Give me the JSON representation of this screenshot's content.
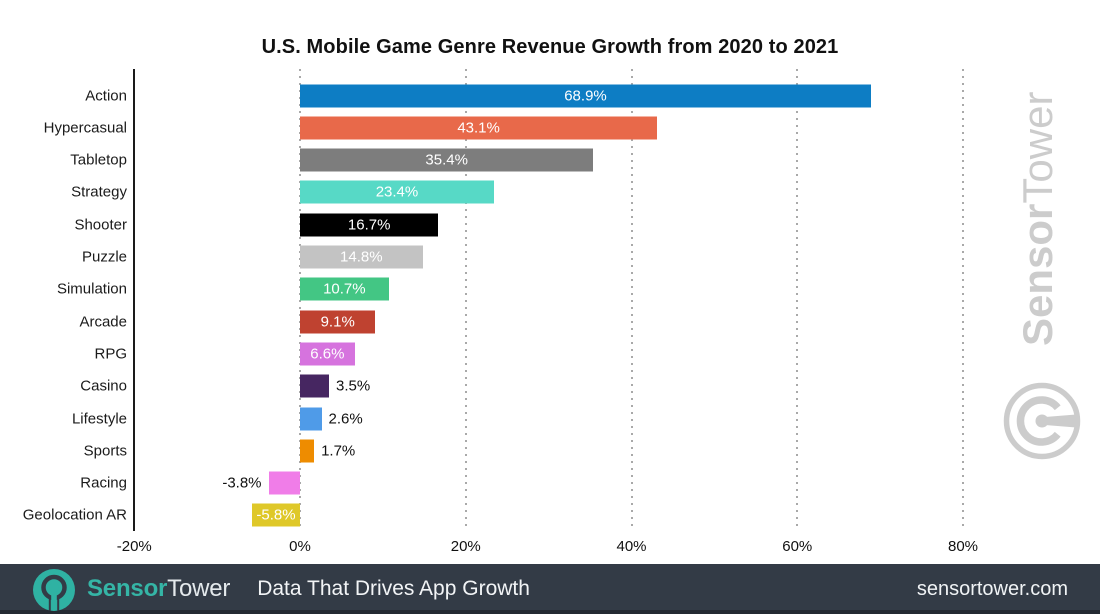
{
  "chart_data": {
    "type": "bar",
    "orientation": "horizontal",
    "title": "U.S. Mobile Game Genre Revenue Growth from 2020 to 2021",
    "categories": [
      "Action",
      "Hypercasual",
      "Tabletop",
      "Strategy",
      "Shooter",
      "Puzzle",
      "Simulation",
      "Arcade",
      "RPG",
      "Casino",
      "Lifestyle",
      "Sports",
      "Racing",
      "Geolocation AR"
    ],
    "values": [
      68.9,
      43.1,
      35.4,
      23.4,
      16.7,
      14.8,
      10.7,
      9.1,
      6.6,
      3.5,
      2.6,
      1.7,
      -3.8,
      -5.8
    ],
    "items": [
      {
        "label": "Action",
        "value": 68.9,
        "display": "68.9%",
        "color": "#0d7dc4",
        "label_pos": "inside",
        "label_color": "#ffffff"
      },
      {
        "label": "Hypercasual",
        "value": 43.1,
        "display": "43.1%",
        "color": "#e8694a",
        "label_pos": "inside",
        "label_color": "#ffffff"
      },
      {
        "label": "Tabletop",
        "value": 35.4,
        "display": "35.4%",
        "color": "#7d7d7d",
        "label_pos": "inside",
        "label_color": "#ffffff"
      },
      {
        "label": "Strategy",
        "value": 23.4,
        "display": "23.4%",
        "color": "#57d9c6",
        "label_pos": "inside",
        "label_color": "#ffffff"
      },
      {
        "label": "Shooter",
        "value": 16.7,
        "display": "16.7%",
        "color": "#000000",
        "label_pos": "inside",
        "label_color": "#ffffff"
      },
      {
        "label": "Puzzle",
        "value": 14.8,
        "display": "14.8%",
        "color": "#c3c3c3",
        "label_pos": "inside",
        "label_color": "#ffffff"
      },
      {
        "label": "Simulation",
        "value": 10.7,
        "display": "10.7%",
        "color": "#43c684",
        "label_pos": "inside",
        "label_color": "#ffffff"
      },
      {
        "label": "Arcade",
        "value": 9.1,
        "display": "9.1%",
        "color": "#bf4230",
        "label_pos": "inside",
        "label_color": "#ffffff"
      },
      {
        "label": "RPG",
        "value": 6.6,
        "display": "6.6%",
        "color": "#d673de",
        "label_pos": "inside",
        "label_color": "#ffffff"
      },
      {
        "label": "Casino",
        "value": 3.5,
        "display": "3.5%",
        "color": "#462661",
        "label_pos": "right",
        "label_color": "#111111"
      },
      {
        "label": "Lifestyle",
        "value": 2.6,
        "display": "2.6%",
        "color": "#4f9be8",
        "label_pos": "right",
        "label_color": "#111111"
      },
      {
        "label": "Sports",
        "value": 1.7,
        "display": "1.7%",
        "color": "#ee8c00",
        "label_pos": "right",
        "label_color": "#111111"
      },
      {
        "label": "Racing",
        "value": -3.8,
        "display": "-3.8%",
        "color": "#f07de8",
        "label_pos": "left",
        "label_color": "#111111"
      },
      {
        "label": "Geolocation AR",
        "value": -5.8,
        "display": "-5.8%",
        "color": "#dfc829",
        "label_pos": "inside",
        "label_color": "#ffffff"
      }
    ],
    "x_axis": {
      "range": [
        -20,
        88
      ],
      "ticks": [
        {
          "value": -20,
          "label": "-20%"
        },
        {
          "value": 0,
          "label": "0%"
        },
        {
          "value": 20,
          "label": "20%"
        },
        {
          "value": 40,
          "label": "40%"
        },
        {
          "value": 60,
          "label": "60%"
        },
        {
          "value": 80,
          "label": "80%"
        }
      ]
    },
    "grid": {
      "style": "dotted-vertical",
      "color": "#a9a9a9",
      "lines_at": [
        0,
        20,
        40,
        60,
        80
      ]
    },
    "legend": "none"
  },
  "watermark": {
    "brand_bold": "Sensor",
    "brand_light": "Tower",
    "color": "#cccccc"
  },
  "footer": {
    "brand_bold": "Sensor",
    "brand_light": "Tower",
    "tagline": "Data That Drives App Growth",
    "website": "sensortower.com",
    "background": "#333b46",
    "teal": "#35b5a6"
  }
}
